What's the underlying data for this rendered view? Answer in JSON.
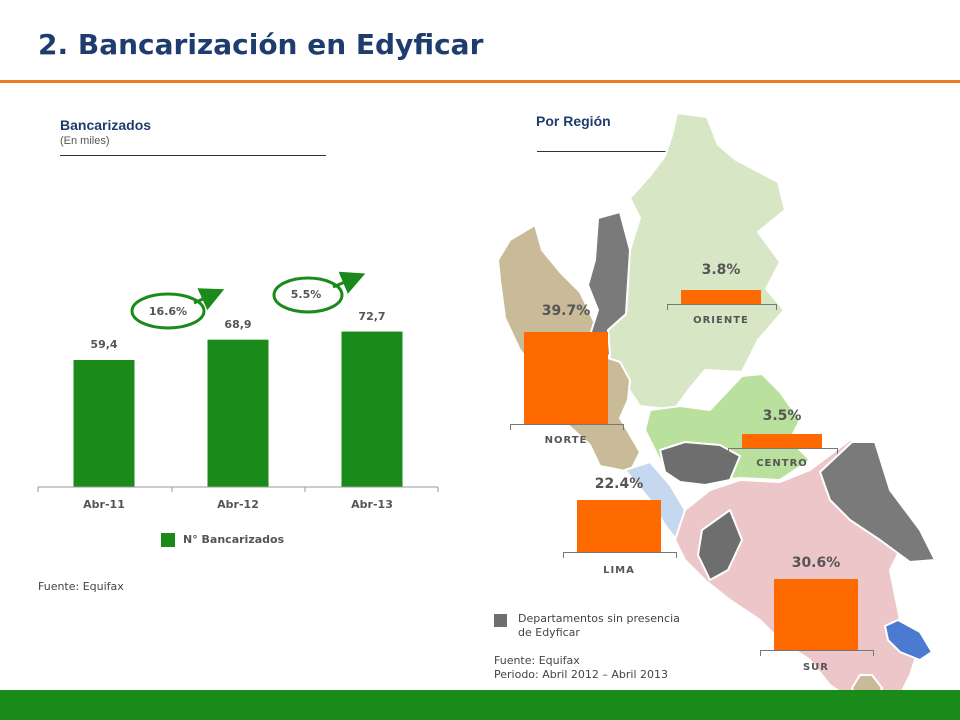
{
  "slide": {
    "title": "2. Bancarización en Edyficar"
  },
  "left_panel": {
    "title": "Bancarizados",
    "subtitle": "(En miles)",
    "growth_labels": [
      "16.6%",
      "5.5%"
    ],
    "legend_label": "N° Bancarizados",
    "source": "Fuente: Equifax"
  },
  "right_panel": {
    "title": "Por Región",
    "no_presence_legend": [
      "Departamentos sin presencia",
      "de Edyficar"
    ],
    "source": "Fuente: Equifax",
    "period": "Periodo: Abril 2012 – Abril 2013"
  },
  "colors": {
    "title": "#1f3c6e",
    "accent_orange": "#f07a1e",
    "bar_green": "#1a8a1a",
    "region_bar": "#ff6a00",
    "no_presence": "#6e6e6e",
    "norte_region": "#c9bb98",
    "oriente_region": "#d7e6c4",
    "centro_region": "#b9e09c",
    "lima_region": "#c5d8f0",
    "sur_region": "#ecc6c8"
  },
  "chart_data": [
    {
      "type": "bar",
      "categories": [
        "Abr-11",
        "Abr-12",
        "Abr-13"
      ],
      "values": [
        59.4,
        68.9,
        72.7
      ],
      "value_labels": [
        "59,4",
        "68,9",
        "72,7"
      ],
      "ylim": [
        0,
        100
      ],
      "grid": false,
      "legend": "bottom-center"
    },
    {
      "type": "bar",
      "categories": [
        "NORTE",
        "ORIENTE",
        "CENTRO",
        "LIMA",
        "SUR"
      ],
      "values": [
        39.7,
        3.8,
        3.5,
        22.4,
        30.6
      ],
      "value_labels": [
        "39.7%",
        "3.8%",
        "3.5%",
        "22.4%",
        "30.6%"
      ],
      "grid": false
    }
  ]
}
